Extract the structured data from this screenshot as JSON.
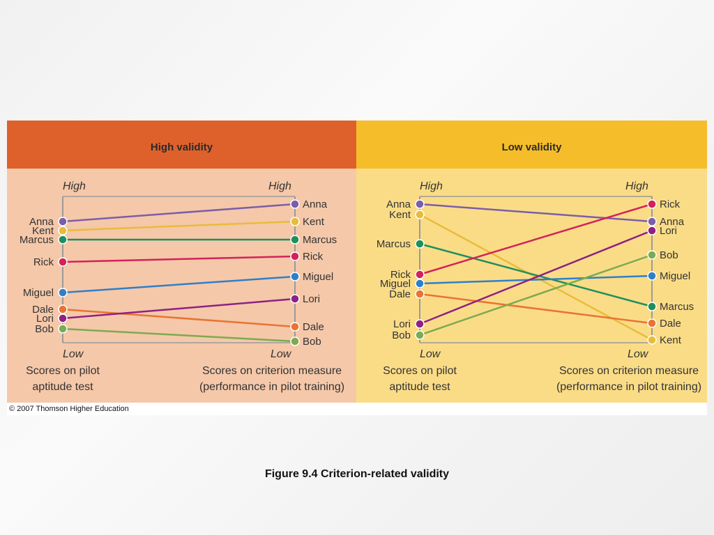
{
  "colors": {
    "left_header": "#de612c",
    "left_body": "#f5c8a9",
    "right_header": "#f6bd2a",
    "right_body": "#fadc87",
    "axis": "#9a9a9a",
    "text": "#333333",
    "people": {
      "Anna": "#7b5ea8",
      "Kent": "#e8bc3a",
      "Marcus": "#1f8f5c",
      "Rick": "#d4215a",
      "Miguel": "#2f7fc8",
      "Lori": "#8e2183",
      "Dale": "#ea7333",
      "Bob": "#7caa52"
    }
  },
  "panels": [
    {
      "title": "High validity",
      "left_high": "High",
      "right_high": "High",
      "left_low": "Low",
      "right_low": "Low",
      "left_caption": [
        "Scores on pilot",
        "aptitude test"
      ],
      "right_caption": [
        "Scores on criterion measure",
        "(performance in pilot training)"
      ],
      "pilot_order": [
        "Anna",
        "Kent",
        "Marcus",
        "Rick",
        "Miguel",
        "Dale",
        "Lori",
        "Bob"
      ],
      "criterion_order": [
        "Anna",
        "Kent",
        "Marcus",
        "Rick",
        "Miguel",
        "Lori",
        "Dale",
        "Bob"
      ]
    },
    {
      "title": "Low validity",
      "left_high": "High",
      "right_high": "High",
      "left_low": "Low",
      "right_low": "Low",
      "left_caption": [
        "Scores on pilot",
        "aptitude test"
      ],
      "right_caption": [
        "Scores on criterion measure",
        "(performance in pilot training)"
      ],
      "pilot_order": [
        "Anna",
        "Kent",
        "Marcus",
        "Rick",
        "Miguel",
        "Dale",
        "Lori",
        "Bob"
      ],
      "criterion_order": [
        "Rick",
        "Anna",
        "Lori",
        "Bob",
        "Miguel",
        "Marcus",
        "Dale",
        "Kent"
      ]
    }
  ],
  "copyright": "© 2007 Thomson Higher Education",
  "caption": "Figure 9.4  Criterion-related validity"
}
